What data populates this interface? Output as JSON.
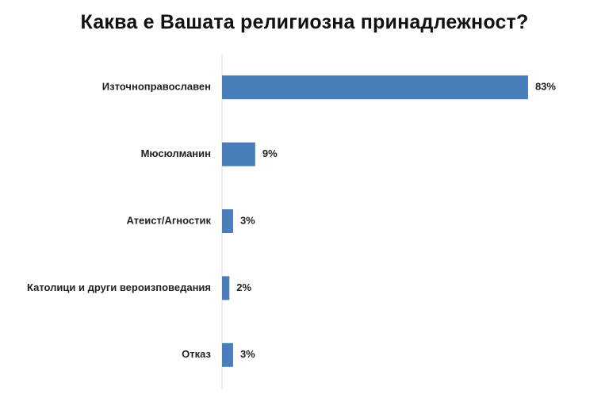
{
  "chart_data": {
    "type": "bar",
    "orientation": "horizontal",
    "title": "Каква е Вашата религиозна принадлежност?",
    "categories": [
      "Източноправославен",
      "Мюсюлманин",
      "Атеист/Агностик",
      "Католици и други вероизповедания",
      "Отказ"
    ],
    "values": [
      83,
      9,
      3,
      2,
      3
    ],
    "value_labels": [
      "83%",
      "9%",
      "3%",
      "2%",
      "3%"
    ],
    "xlim": [
      0,
      100
    ],
    "grid": false,
    "bar_color": "#4A7EBB",
    "axis_color": "#D9D9D9"
  }
}
